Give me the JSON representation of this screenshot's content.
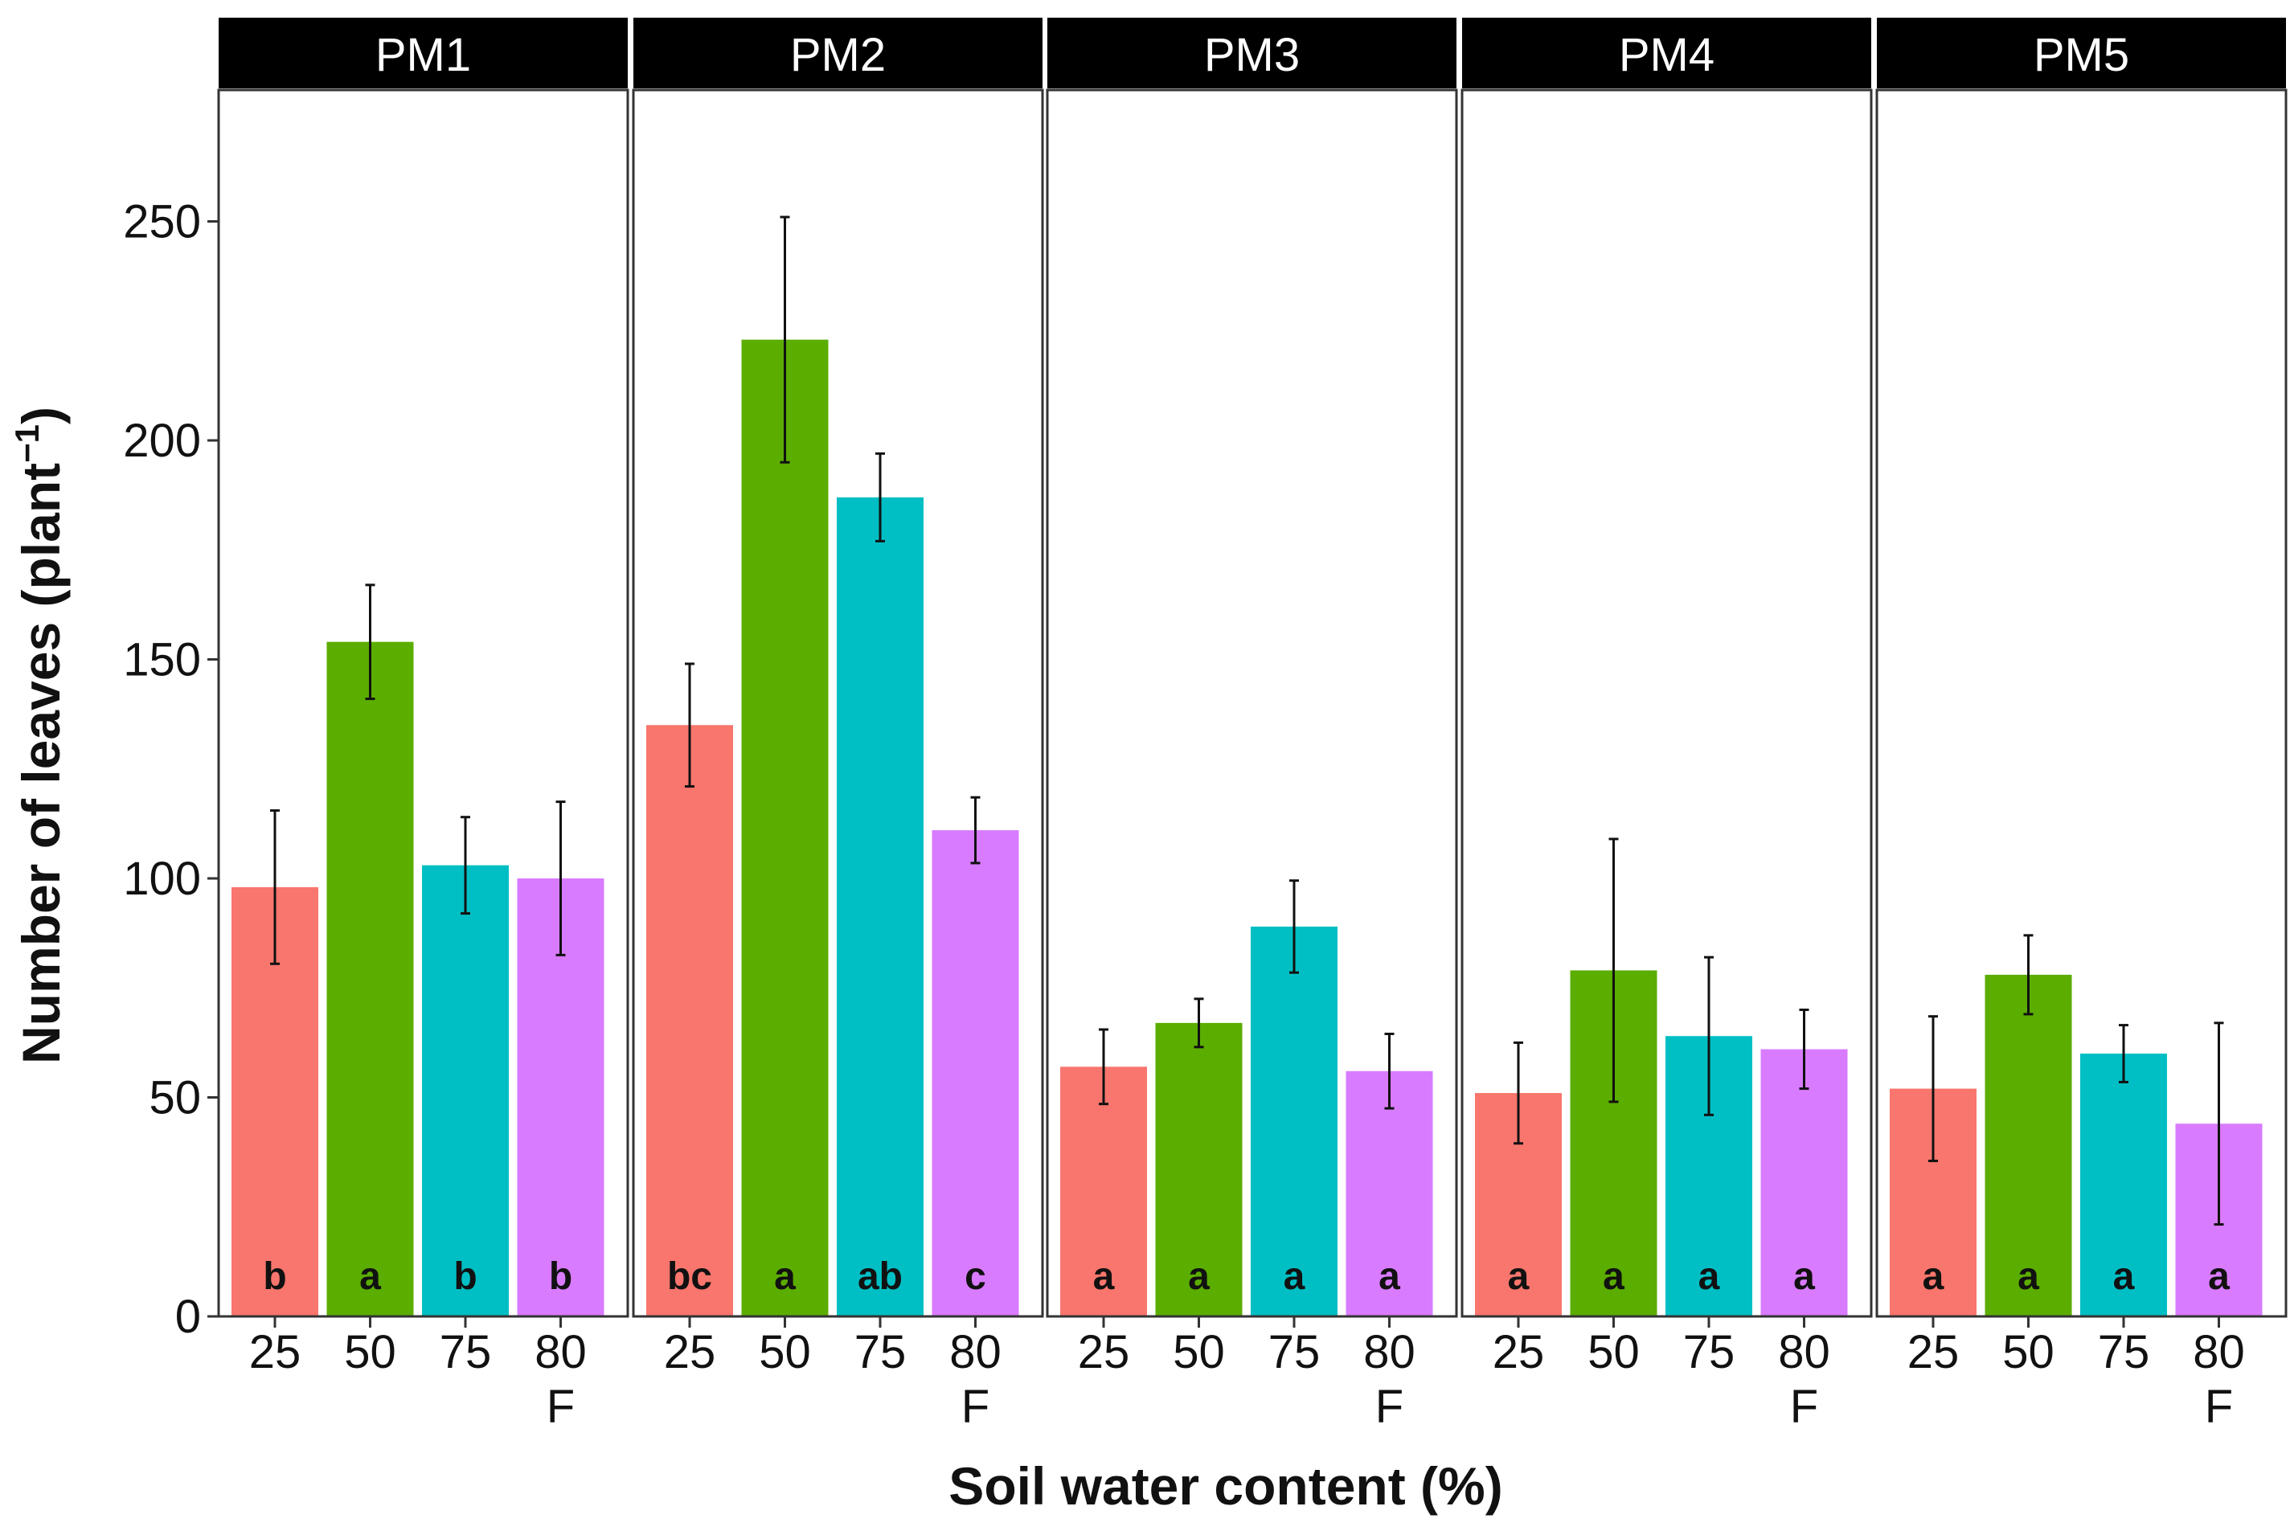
{
  "chart_data": {
    "type": "bar",
    "layout": "faceted",
    "xlabel": "Soil water content (%)",
    "ylabel": "Number of leaves (plant",
    "ylabel_superscript": "−1",
    "ylabel_suffix": ")",
    "ylim": [
      0,
      280
    ],
    "yticks": [
      0,
      50,
      100,
      150,
      200,
      250
    ],
    "grid": false,
    "legend": "none",
    "categories": [
      {
        "label": "25",
        "sublabel": ""
      },
      {
        "label": "50",
        "sublabel": ""
      },
      {
        "label": "75",
        "sublabel": ""
      },
      {
        "label": "80",
        "sublabel": "F"
      }
    ],
    "colors": [
      "#F8766D",
      "#5BAD00",
      "#00BFC4",
      "#D97BFF"
    ],
    "panels": [
      {
        "name": "PM1",
        "values": [
          98,
          154,
          103,
          100
        ],
        "errors": [
          17.5,
          13,
          11,
          17.5
        ],
        "letters": [
          "b",
          "a",
          "b",
          "b"
        ]
      },
      {
        "name": "PM2",
        "values": [
          135,
          223,
          187,
          111
        ],
        "errors": [
          14,
          28,
          10,
          7.5
        ],
        "letters": [
          "bc",
          "a",
          "ab",
          "c"
        ]
      },
      {
        "name": "PM3",
        "values": [
          57,
          67,
          89,
          56
        ],
        "errors": [
          8.5,
          5.5,
          10.5,
          8.5
        ],
        "letters": [
          "a",
          "a",
          "a",
          "a"
        ]
      },
      {
        "name": "PM4",
        "values": [
          51,
          79,
          64,
          61
        ],
        "errors": [
          11.5,
          30,
          18,
          9
        ],
        "letters": [
          "a",
          "a",
          "a",
          "a"
        ]
      },
      {
        "name": "PM5",
        "values": [
          52,
          78,
          60,
          44
        ],
        "errors": [
          16.5,
          9,
          6.5,
          23
        ],
        "letters": [
          "a",
          "a",
          "a",
          "a"
        ]
      }
    ]
  }
}
